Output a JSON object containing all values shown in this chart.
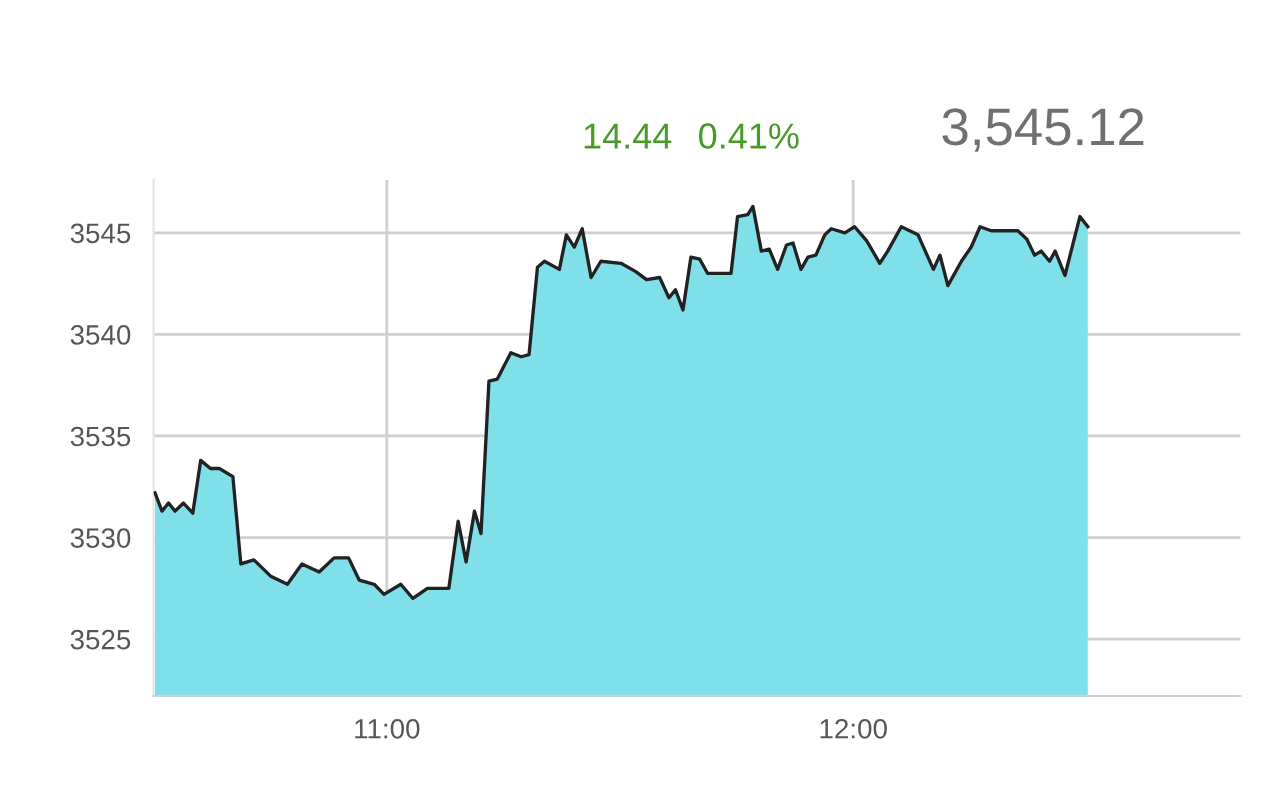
{
  "chart_data": {
    "type": "area",
    "x": [
      10.503,
      10.518,
      10.532,
      10.546,
      10.564,
      10.584,
      10.601,
      10.622,
      10.641,
      10.67,
      10.687,
      10.715,
      10.751,
      10.787,
      10.818,
      10.855,
      10.887,
      10.918,
      10.941,
      10.973,
      10.994,
      11.03,
      11.056,
      11.087,
      11.133,
      11.153,
      11.17,
      11.188,
      11.202,
      11.219,
      11.237,
      11.266,
      11.288,
      11.305,
      11.323,
      11.338,
      11.37,
      11.385,
      11.402,
      11.419,
      11.438,
      11.459,
      11.502,
      11.533,
      11.557,
      11.585,
      11.605,
      11.619,
      11.635,
      11.652,
      11.671,
      11.688,
      11.738,
      11.752,
      11.774,
      11.785,
      11.803,
      11.82,
      11.838,
      11.857,
      11.871,
      11.888,
      11.903,
      11.92,
      11.939,
      11.953,
      11.982,
      12.003,
      12.029,
      12.057,
      12.074,
      12.103,
      12.139,
      12.172,
      12.186,
      12.203,
      12.232,
      12.253,
      12.272,
      12.296,
      12.353,
      12.372,
      12.389,
      12.403,
      12.421,
      12.433,
      12.454,
      12.486,
      12.503
    ],
    "series": [
      {
        "color": "#7fe0ea",
        "values": [
          3532.2,
          3531.3,
          3531.7,
          3531.3,
          3531.7,
          3531.2,
          3533.8,
          3533.4,
          3533.4,
          3533.0,
          3528.7,
          3528.9,
          3528.1,
          3527.7,
          3528.7,
          3528.3,
          3529.0,
          3529.0,
          3527.9,
          3527.7,
          3527.2,
          3527.7,
          3527.0,
          3527.5,
          3527.5,
          3530.8,
          3528.8,
          3531.3,
          3530.2,
          3537.7,
          3537.8,
          3539.1,
          3538.9,
          3539.0,
          3543.3,
          3543.6,
          3543.2,
          3544.9,
          3544.3,
          3545.2,
          3542.8,
          3543.6,
          3543.5,
          3543.1,
          3542.7,
          3542.8,
          3541.8,
          3542.2,
          3541.2,
          3543.8,
          3543.7,
          3543.0,
          3543.0,
          3545.8,
          3545.9,
          3546.3,
          3544.1,
          3544.2,
          3543.2,
          3544.4,
          3544.5,
          3543.2,
          3543.8,
          3543.9,
          3544.9,
          3545.2,
          3545.0,
          3545.3,
          3544.6,
          3543.5,
          3544.1,
          3545.3,
          3544.9,
          3543.2,
          3543.9,
          3542.4,
          3543.6,
          3544.3,
          3545.3,
          3545.1,
          3545.1,
          3544.7,
          3543.9,
          3544.1,
          3543.6,
          3544.1,
          3542.9,
          3545.8,
          3545.3
        ]
      }
    ],
    "xlim": [
      10.5,
      12.83
    ],
    "xticks": [
      {
        "value": 11,
        "label": "11:00"
      },
      {
        "value": 12,
        "label": "12:00"
      }
    ],
    "ylim": [
      3522.2,
      3547.6
    ],
    "yticks": [
      3525,
      3530,
      3535,
      3540,
      3545
    ],
    "grid": true,
    "annotations": [
      "14.44",
      "0.41%",
      "3,545.12"
    ]
  }
}
